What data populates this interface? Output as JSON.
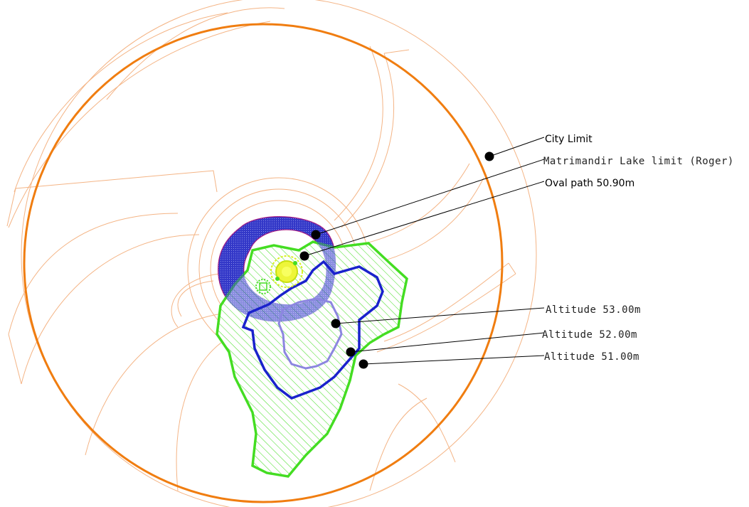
{
  "colors": {
    "city_limit": "#f07d10",
    "guide_lines": "#f4b485",
    "lake": "#3338c8",
    "lake_edge": "#b0147a",
    "altitude_53": "#1a22cc",
    "altitude_52": "#8c86e0",
    "altitude_51": "#44dd22",
    "hatch": "#44dd22",
    "center": "#d8f020",
    "leader": "#000000"
  },
  "labels": {
    "city_limit": "City Limit",
    "lake_limit": "Matrimandir Lake limit (Roger)",
    "oval_path": "Oval path 50.90m",
    "alt_53": "Altitude 53.00m",
    "alt_52": "Altitude 52.00m",
    "alt_51": "Altitude 51.00m"
  }
}
